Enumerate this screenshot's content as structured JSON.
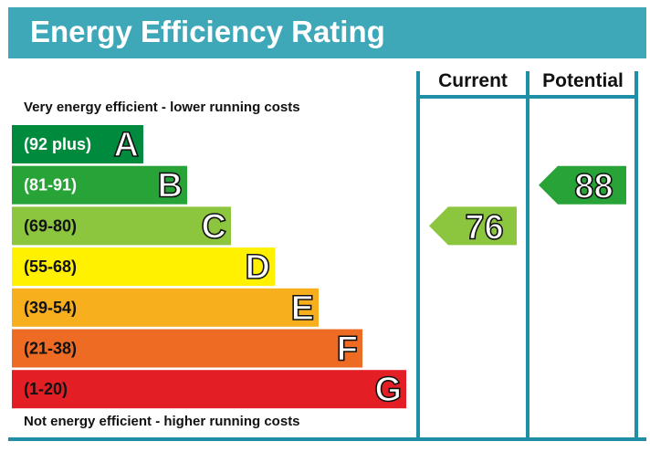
{
  "header": {
    "title": "Energy Efficiency Rating",
    "bar_color": "#3ea8b9"
  },
  "columns": {
    "current_label": "Current",
    "potential_label": "Potential",
    "line_color": "#1f8fa8"
  },
  "captions": {
    "top": "Very energy efficient - lower running costs",
    "bottom": "Not energy efficient - higher running costs"
  },
  "chart_data": {
    "type": "bar",
    "title": "Energy Efficiency Rating",
    "categories": [
      "A",
      "B",
      "C",
      "D",
      "E",
      "F",
      "G"
    ],
    "ranges": [
      "(92 plus)",
      "(81-91)",
      "(69-80)",
      "(55-68)",
      "(39-54)",
      "(21-38)",
      "(1-20)"
    ],
    "min_scores": [
      92,
      81,
      69,
      55,
      39,
      21,
      1
    ],
    "colors": [
      "#008a3e",
      "#27a337",
      "#8cc63f",
      "#fff100",
      "#f7af1d",
      "#ed6b23",
      "#e31e24"
    ],
    "range_text_colors": [
      "#ffffff",
      "#ffffff",
      "#111111",
      "#111111",
      "#111111",
      "#111111",
      "#111111"
    ],
    "series": [
      {
        "name": "Current",
        "value": 76,
        "band": "C",
        "color": "#8cc63f"
      },
      {
        "name": "Potential",
        "value": 88,
        "band": "B",
        "color": "#27a337"
      }
    ]
  }
}
